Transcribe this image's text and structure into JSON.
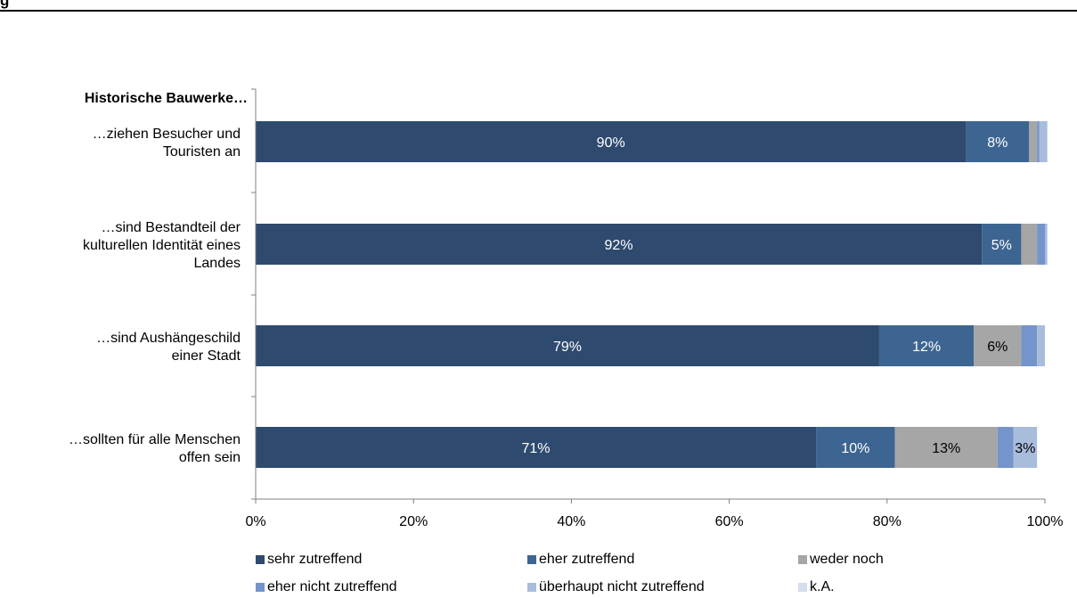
{
  "page": {
    "top_title_fragment": "g"
  },
  "chart_data": {
    "type": "bar",
    "orientation": "horizontal",
    "stacked": true,
    "group_header": "Historische Bauwerke…",
    "categories": [
      "…ziehen Besucher und Touristen an",
      "…sind Bestandteil der kulturellen Identität eines Landes",
      "…sind Aushängeschild einer Stadt",
      "…sollten für alle Menschen offen sein"
    ],
    "category_lines": [
      [
        "…ziehen Besucher und",
        "Touristen an"
      ],
      [
        "…sind Bestandteil der",
        "kulturellen Identität eines",
        "Landes"
      ],
      [
        "…sind Aushängeschild",
        "einer Stadt"
      ],
      [
        "…sollten für alle Menschen",
        "offen sein"
      ]
    ],
    "series": [
      {
        "name": "sehr zutreffend",
        "color": "#2E4A6E",
        "label_color": "#ffffff",
        "values": [
          90,
          92,
          79,
          71
        ],
        "labels": [
          "90%",
          "92%",
          "79%",
          "71%"
        ]
      },
      {
        "name": "eher zutreffend",
        "color": "#3D6591",
        "label_color": "#ffffff",
        "values": [
          8,
          5,
          12,
          10
        ],
        "labels": [
          "8%",
          "5%",
          "12%",
          "10%"
        ]
      },
      {
        "name": "weder noch",
        "color": "#A6A6A6",
        "label_color": "#000000",
        "values": [
          1,
          2,
          6,
          13
        ],
        "labels": [
          "",
          "",
          "6%",
          "13%"
        ]
      },
      {
        "name": "eher nicht zutreffend",
        "color": "#7494CB",
        "label_color": "#000000",
        "values": [
          0.3,
          1,
          2,
          2
        ],
        "labels": [
          "",
          "",
          "",
          ""
        ]
      },
      {
        "name": "überhaupt nicht zutreffend",
        "color": "#A8BCDC",
        "label_color": "#000000",
        "values": [
          1,
          0.3,
          1,
          3
        ],
        "labels": [
          "",
          "",
          "",
          "3%"
        ]
      },
      {
        "name": "k.A.",
        "color": "#D6DDEB",
        "label_color": "#000000",
        "values": [
          0,
          0,
          0,
          0
        ],
        "labels": [
          "",
          "",
          "",
          ""
        ]
      }
    ],
    "x_ticks": [
      "0%",
      "20%",
      "40%",
      "60%",
      "80%",
      "100%"
    ],
    "xlim": [
      0,
      100
    ],
    "grid": false,
    "legend_position": "bottom"
  }
}
